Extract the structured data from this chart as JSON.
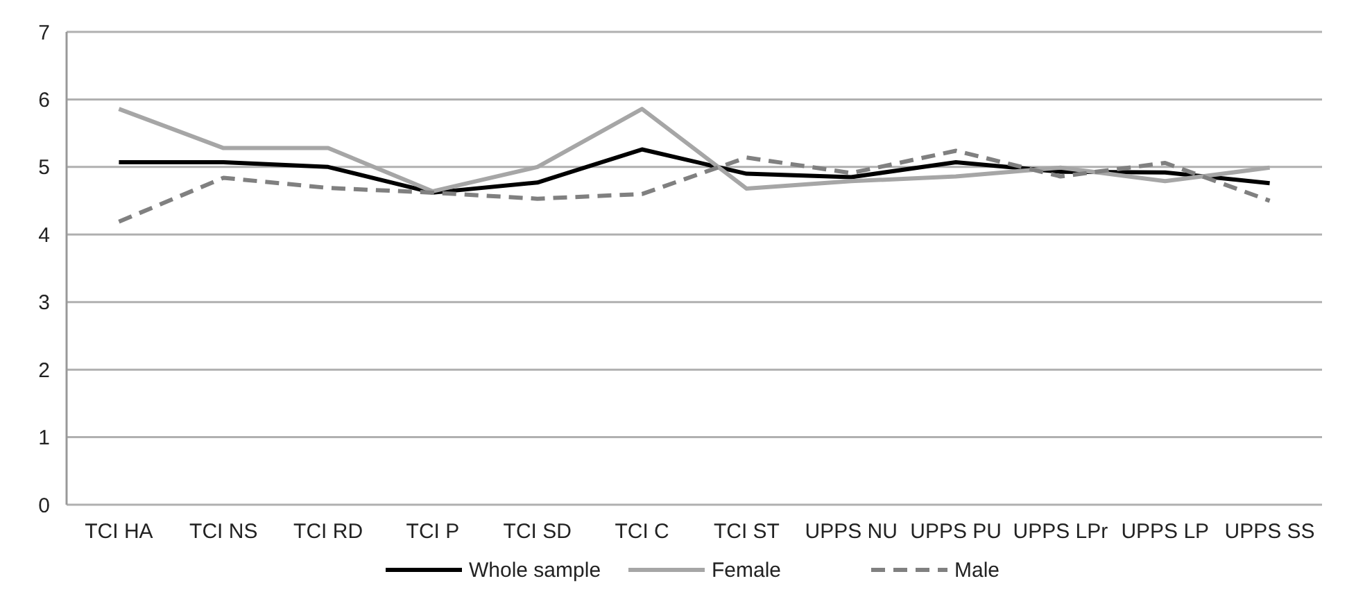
{
  "chart_data": {
    "type": "line",
    "categories": [
      "TCI HA",
      "TCI NS",
      "TCI RD",
      "TCI P",
      "TCI SD",
      "TCI C",
      "TCI ST",
      "UPPS NU",
      "UPPS PU",
      "UPPS LPr",
      "UPPS LP",
      "UPPS SS"
    ],
    "series": [
      {
        "name": "Whole sample",
        "color": "#000000",
        "line_style": "solid",
        "values": [
          5.07,
          5.07,
          5.0,
          4.62,
          4.77,
          5.26,
          4.9,
          4.85,
          5.07,
          4.93,
          4.92,
          4.76
        ]
      },
      {
        "name": "Female",
        "color": "#a6a6a6",
        "line_style": "solid",
        "values": [
          5.86,
          5.28,
          5.28,
          4.64,
          5.0,
          5.86,
          4.68,
          4.79,
          4.86,
          4.99,
          4.79,
          4.99
        ]
      },
      {
        "name": "Male",
        "color": "#808080",
        "line_style": "dashed",
        "values": [
          4.19,
          4.84,
          4.69,
          4.62,
          4.53,
          4.6,
          5.14,
          4.91,
          5.24,
          4.86,
          5.06,
          4.5
        ]
      }
    ],
    "ylim": [
      0,
      7
    ],
    "yticks": [
      0,
      1,
      2,
      3,
      4,
      5,
      6,
      7
    ],
    "grid": "y",
    "legend": "bottom",
    "marker": "none"
  }
}
